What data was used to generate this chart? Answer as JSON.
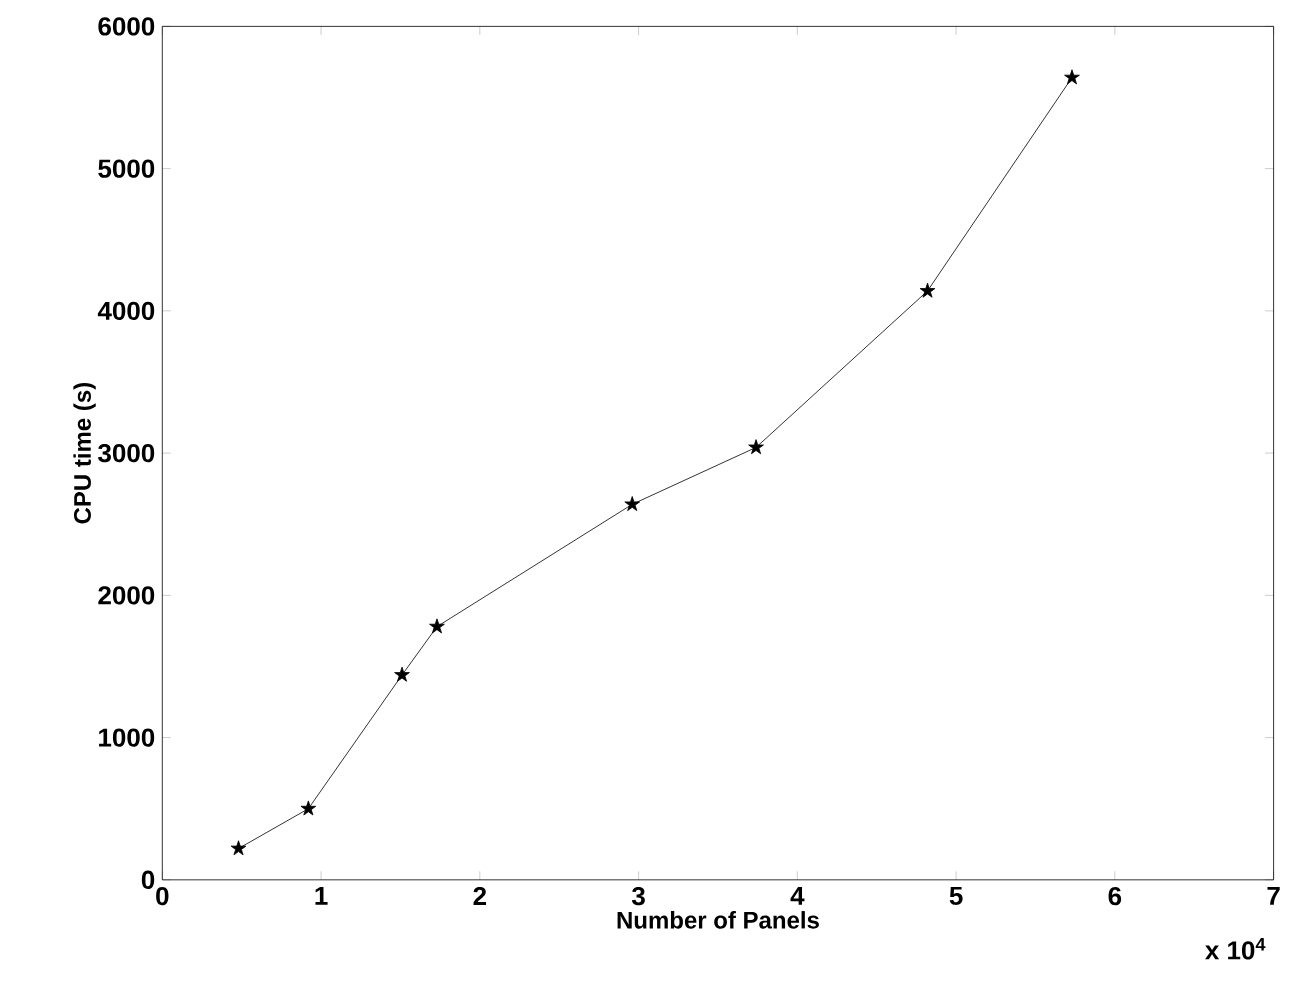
{
  "chart_data": {
    "type": "line",
    "xlabel": "Number of Panels",
    "ylabel": "CPU time (s)",
    "annotations": [
      "x 10$^{4}$"
    ],
    "x": [
      0.48,
      0.92,
      1.51,
      1.73,
      2.96,
      3.74,
      4.82,
      5.73
    ],
    "series": [
      {
        "color": "#000000",
        "values": [
          220,
          500,
          1440,
          1780,
          2640,
          3040,
          4140,
          5640
        ]
      }
    ],
    "xlim": [
      0,
      7
    ],
    "ylim": [
      0,
      6000
    ],
    "xticks": [
      0,
      1,
      2,
      3,
      4,
      5,
      6,
      7
    ],
    "yticks": [
      0,
      1000,
      2000,
      3000,
      4000,
      5000,
      6000
    ],
    "marker": "star",
    "line_style": "solid"
  }
}
